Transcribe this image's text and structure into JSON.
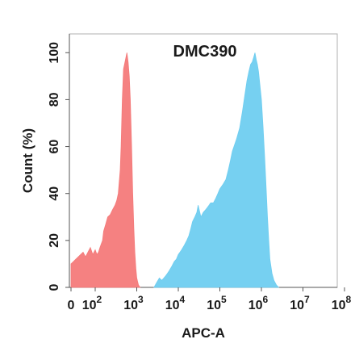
{
  "chart_data": {
    "type": "area",
    "title": "DMC390",
    "xlabel": "APC-A",
    "ylabel": "Count  (%)",
    "x_scale": "biexponential (0 then log10)",
    "xlim": [
      0,
      100000000
    ],
    "ylim": [
      0,
      108
    ],
    "x_ticks": [
      {
        "value": 0,
        "label": "0",
        "sup": ""
      },
      {
        "value": 100,
        "label": "10",
        "sup": "2"
      },
      {
        "value": 1000,
        "label": "10",
        "sup": "3"
      },
      {
        "value": 10000,
        "label": "10",
        "sup": "4"
      },
      {
        "value": 100000,
        "label": "10",
        "sup": "5"
      },
      {
        "value": 1000000,
        "label": "10",
        "sup": "6"
      },
      {
        "value": 10000000,
        "label": "10",
        "sup": "7"
      },
      {
        "value": 100000000,
        "label": "10",
        "sup": "8"
      }
    ],
    "y_ticks": [
      0,
      20,
      40,
      60,
      80,
      100
    ],
    "grid": false,
    "legend": "none",
    "series": [
      {
        "color": "#f47a7a",
        "points": [
          [
            0,
            10
          ],
          [
            10,
            11
          ],
          [
            20,
            12
          ],
          [
            30,
            13
          ],
          [
            40,
            14
          ],
          [
            50,
            15
          ],
          [
            60,
            13
          ],
          [
            70,
            15
          ],
          [
            80,
            17
          ],
          [
            90,
            14
          ],
          [
            100,
            16
          ],
          [
            110,
            14
          ],
          [
            120,
            15
          ],
          [
            130,
            17
          ],
          [
            150,
            20
          ],
          [
            160,
            24
          ],
          [
            180,
            27
          ],
          [
            200,
            30
          ],
          [
            230,
            31
          ],
          [
            260,
            33
          ],
          [
            300,
            35
          ],
          [
            330,
            37
          ],
          [
            360,
            40
          ],
          [
            400,
            50
          ],
          [
            420,
            60
          ],
          [
            450,
            80
          ],
          [
            480,
            93
          ],
          [
            520,
            96
          ],
          [
            550,
            98
          ],
          [
            580,
            100
          ],
          [
            620,
            96
          ],
          [
            660,
            90
          ],
          [
            700,
            80
          ],
          [
            750,
            60
          ],
          [
            800,
            40
          ],
          [
            850,
            25
          ],
          [
            900,
            15
          ],
          [
            950,
            8
          ],
          [
            1000,
            4
          ],
          [
            1100,
            1
          ],
          [
            1200,
            0
          ]
        ]
      },
      {
        "color": "#6fcdf0",
        "points": [
          [
            2600,
            0
          ],
          [
            3000,
            2
          ],
          [
            3500,
            4
          ],
          [
            4000,
            3
          ],
          [
            4500,
            4
          ],
          [
            5000,
            5
          ],
          [
            5500,
            6
          ],
          [
            6000,
            7
          ],
          [
            7000,
            9
          ],
          [
            8000,
            11
          ],
          [
            9000,
            12
          ],
          [
            10000,
            14
          ],
          [
            11000,
            15
          ],
          [
            12000,
            16
          ],
          [
            14000,
            18
          ],
          [
            16000,
            20
          ],
          [
            18000,
            22
          ],
          [
            20000,
            25
          ],
          [
            22000,
            28
          ],
          [
            25000,
            30
          ],
          [
            28000,
            32
          ],
          [
            30000,
            35
          ],
          [
            35000,
            30
          ],
          [
            40000,
            32
          ],
          [
            45000,
            33
          ],
          [
            50000,
            34
          ],
          [
            55000,
            35
          ],
          [
            60000,
            36
          ],
          [
            70000,
            36
          ],
          [
            80000,
            38
          ],
          [
            90000,
            40
          ],
          [
            100000,
            42
          ],
          [
            120000,
            44
          ],
          [
            140000,
            46
          ],
          [
            160000,
            50
          ],
          [
            180000,
            54
          ],
          [
            200000,
            58
          ],
          [
            250000,
            63
          ],
          [
            300000,
            68
          ],
          [
            350000,
            75
          ],
          [
            400000,
            82
          ],
          [
            450000,
            88
          ],
          [
            500000,
            92
          ],
          [
            550000,
            95
          ],
          [
            600000,
            96
          ],
          [
            650000,
            98
          ],
          [
            700000,
            100
          ],
          [
            750000,
            97
          ],
          [
            800000,
            95
          ],
          [
            850000,
            92
          ],
          [
            900000,
            88
          ],
          [
            1000000,
            80
          ],
          [
            1100000,
            68
          ],
          [
            1200000,
            55
          ],
          [
            1300000,
            42
          ],
          [
            1400000,
            30
          ],
          [
            1500000,
            20
          ],
          [
            1600000,
            12
          ],
          [
            1800000,
            6
          ],
          [
            2000000,
            3
          ],
          [
            2300000,
            1
          ],
          [
            2600000,
            0
          ]
        ]
      }
    ]
  }
}
